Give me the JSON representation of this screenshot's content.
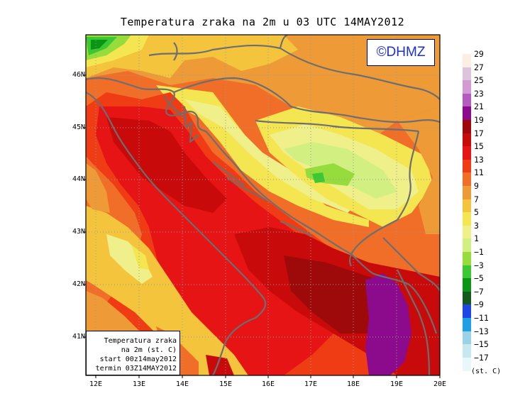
{
  "title": "Temperatura zraka na 2m u 03 UTC 14MAY2012",
  "watermark": "©DHMZ",
  "info": {
    "line1": "Temperatura zraka",
    "line2": "na 2m (st. C)",
    "line3": "start 00z14may2012",
    "line4": "termin 03Z14MAY2012"
  },
  "lat_labels": [
    "46N",
    "45N",
    "44N",
    "43N",
    "42N",
    "41N"
  ],
  "lon_labels": [
    "12E",
    "13E",
    "14E",
    "15E",
    "16E",
    "17E",
    "18E",
    "19E",
    "20E"
  ],
  "legend": {
    "units": "(st. C)",
    "levels": [
      "29",
      "27",
      "25",
      "23",
      "21",
      "19",
      "17",
      "15",
      "13",
      "11",
      "9",
      "7",
      "5",
      "3",
      "1",
      "−1",
      "−3",
      "−5",
      "−7",
      "−9",
      "−11",
      "−13",
      "−15",
      "−17"
    ],
    "colors": [
      "#fbeee2",
      "#dcc4dc",
      "#d39ad3",
      "#b45bbf",
      "#8c0a8c",
      "#9e0a0a",
      "#c80a0a",
      "#e61414",
      "#f03c14",
      "#f06e28",
      "#ee9a36",
      "#f4c43c",
      "#f4e650",
      "#f0f08a",
      "#d2f082",
      "#96dc3c",
      "#3cc832",
      "#0a9614",
      "#145a1e",
      "#1e46e6",
      "#1ea0e6",
      "#9bd2e6",
      "#c8e8f0",
      "#e8f8fa"
    ]
  },
  "colors": {
    "frame": "#000000",
    "border": "#6e6e6e",
    "grid": "#9a9a9a",
    "dhmz_text": "#1a2fd8"
  }
}
